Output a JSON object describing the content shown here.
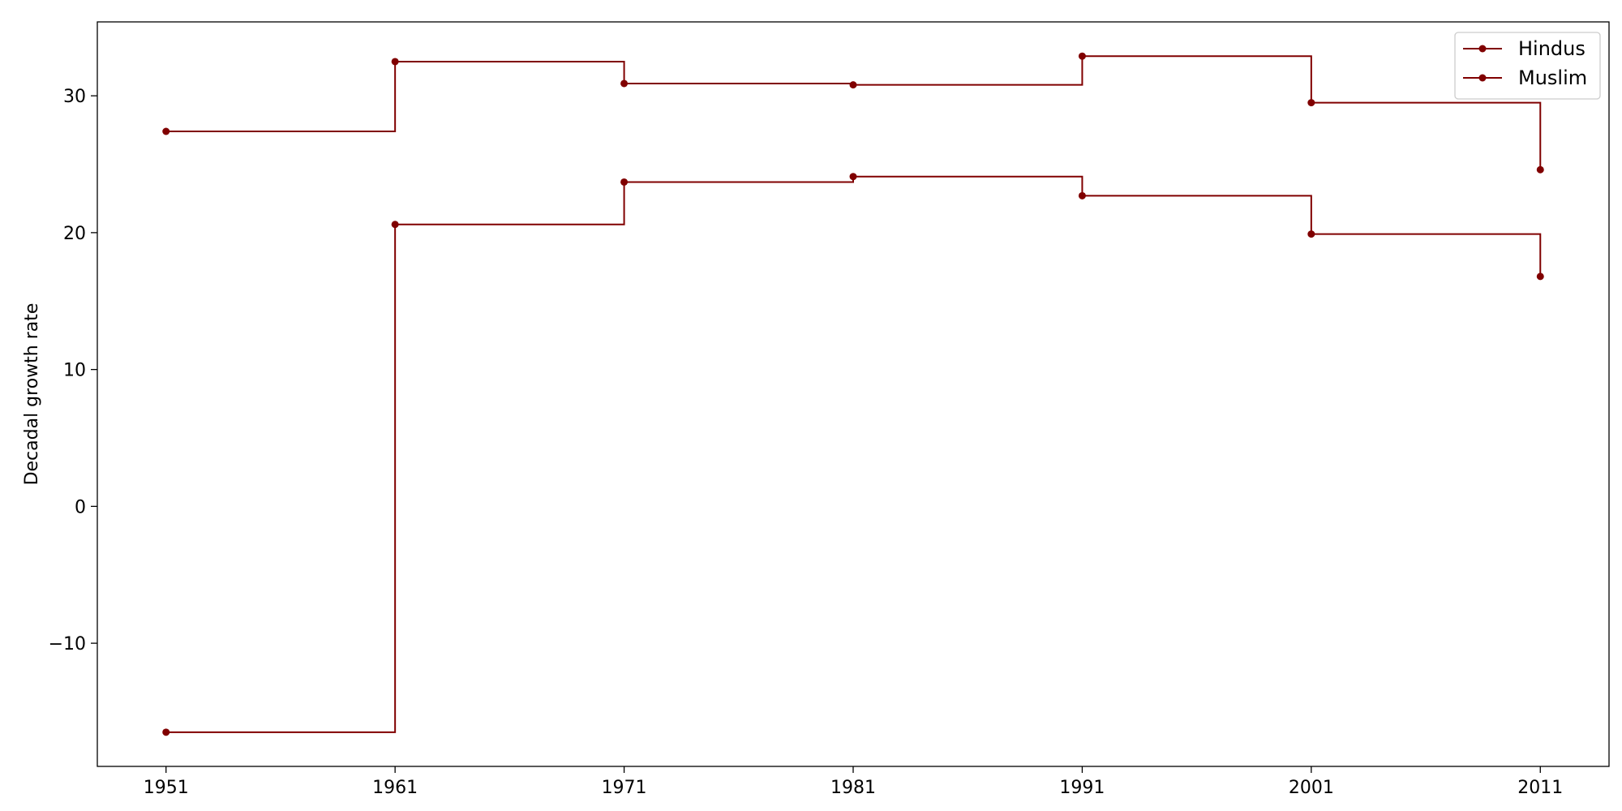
{
  "chart_data": {
    "type": "line",
    "step": "post",
    "title": "",
    "xlabel": "",
    "ylabel": "Decadal growth rate",
    "x": [
      1951,
      1961,
      1971,
      1981,
      1991,
      2001,
      2011
    ],
    "xlim": [
      1948,
      2014
    ],
    "ylim": [
      -19,
      35.4
    ],
    "xticks": [
      "1951",
      "1961",
      "1971",
      "1981",
      "1991",
      "2001",
      "2011"
    ],
    "yticks": [
      -10,
      0,
      10,
      20,
      30
    ],
    "ytick_labels": [
      "−10",
      "0",
      "10",
      "20",
      "30"
    ],
    "grid": false,
    "legend_position": "top-right",
    "series": [
      {
        "name": "Hindus",
        "color": "#800000",
        "values": [
          -16.5,
          20.6,
          23.7,
          24.1,
          22.7,
          19.9,
          16.8
        ]
      },
      {
        "name": "Muslim",
        "color": "#800000",
        "values": [
          27.4,
          32.5,
          30.9,
          30.8,
          32.9,
          29.5,
          24.6
        ]
      }
    ]
  }
}
